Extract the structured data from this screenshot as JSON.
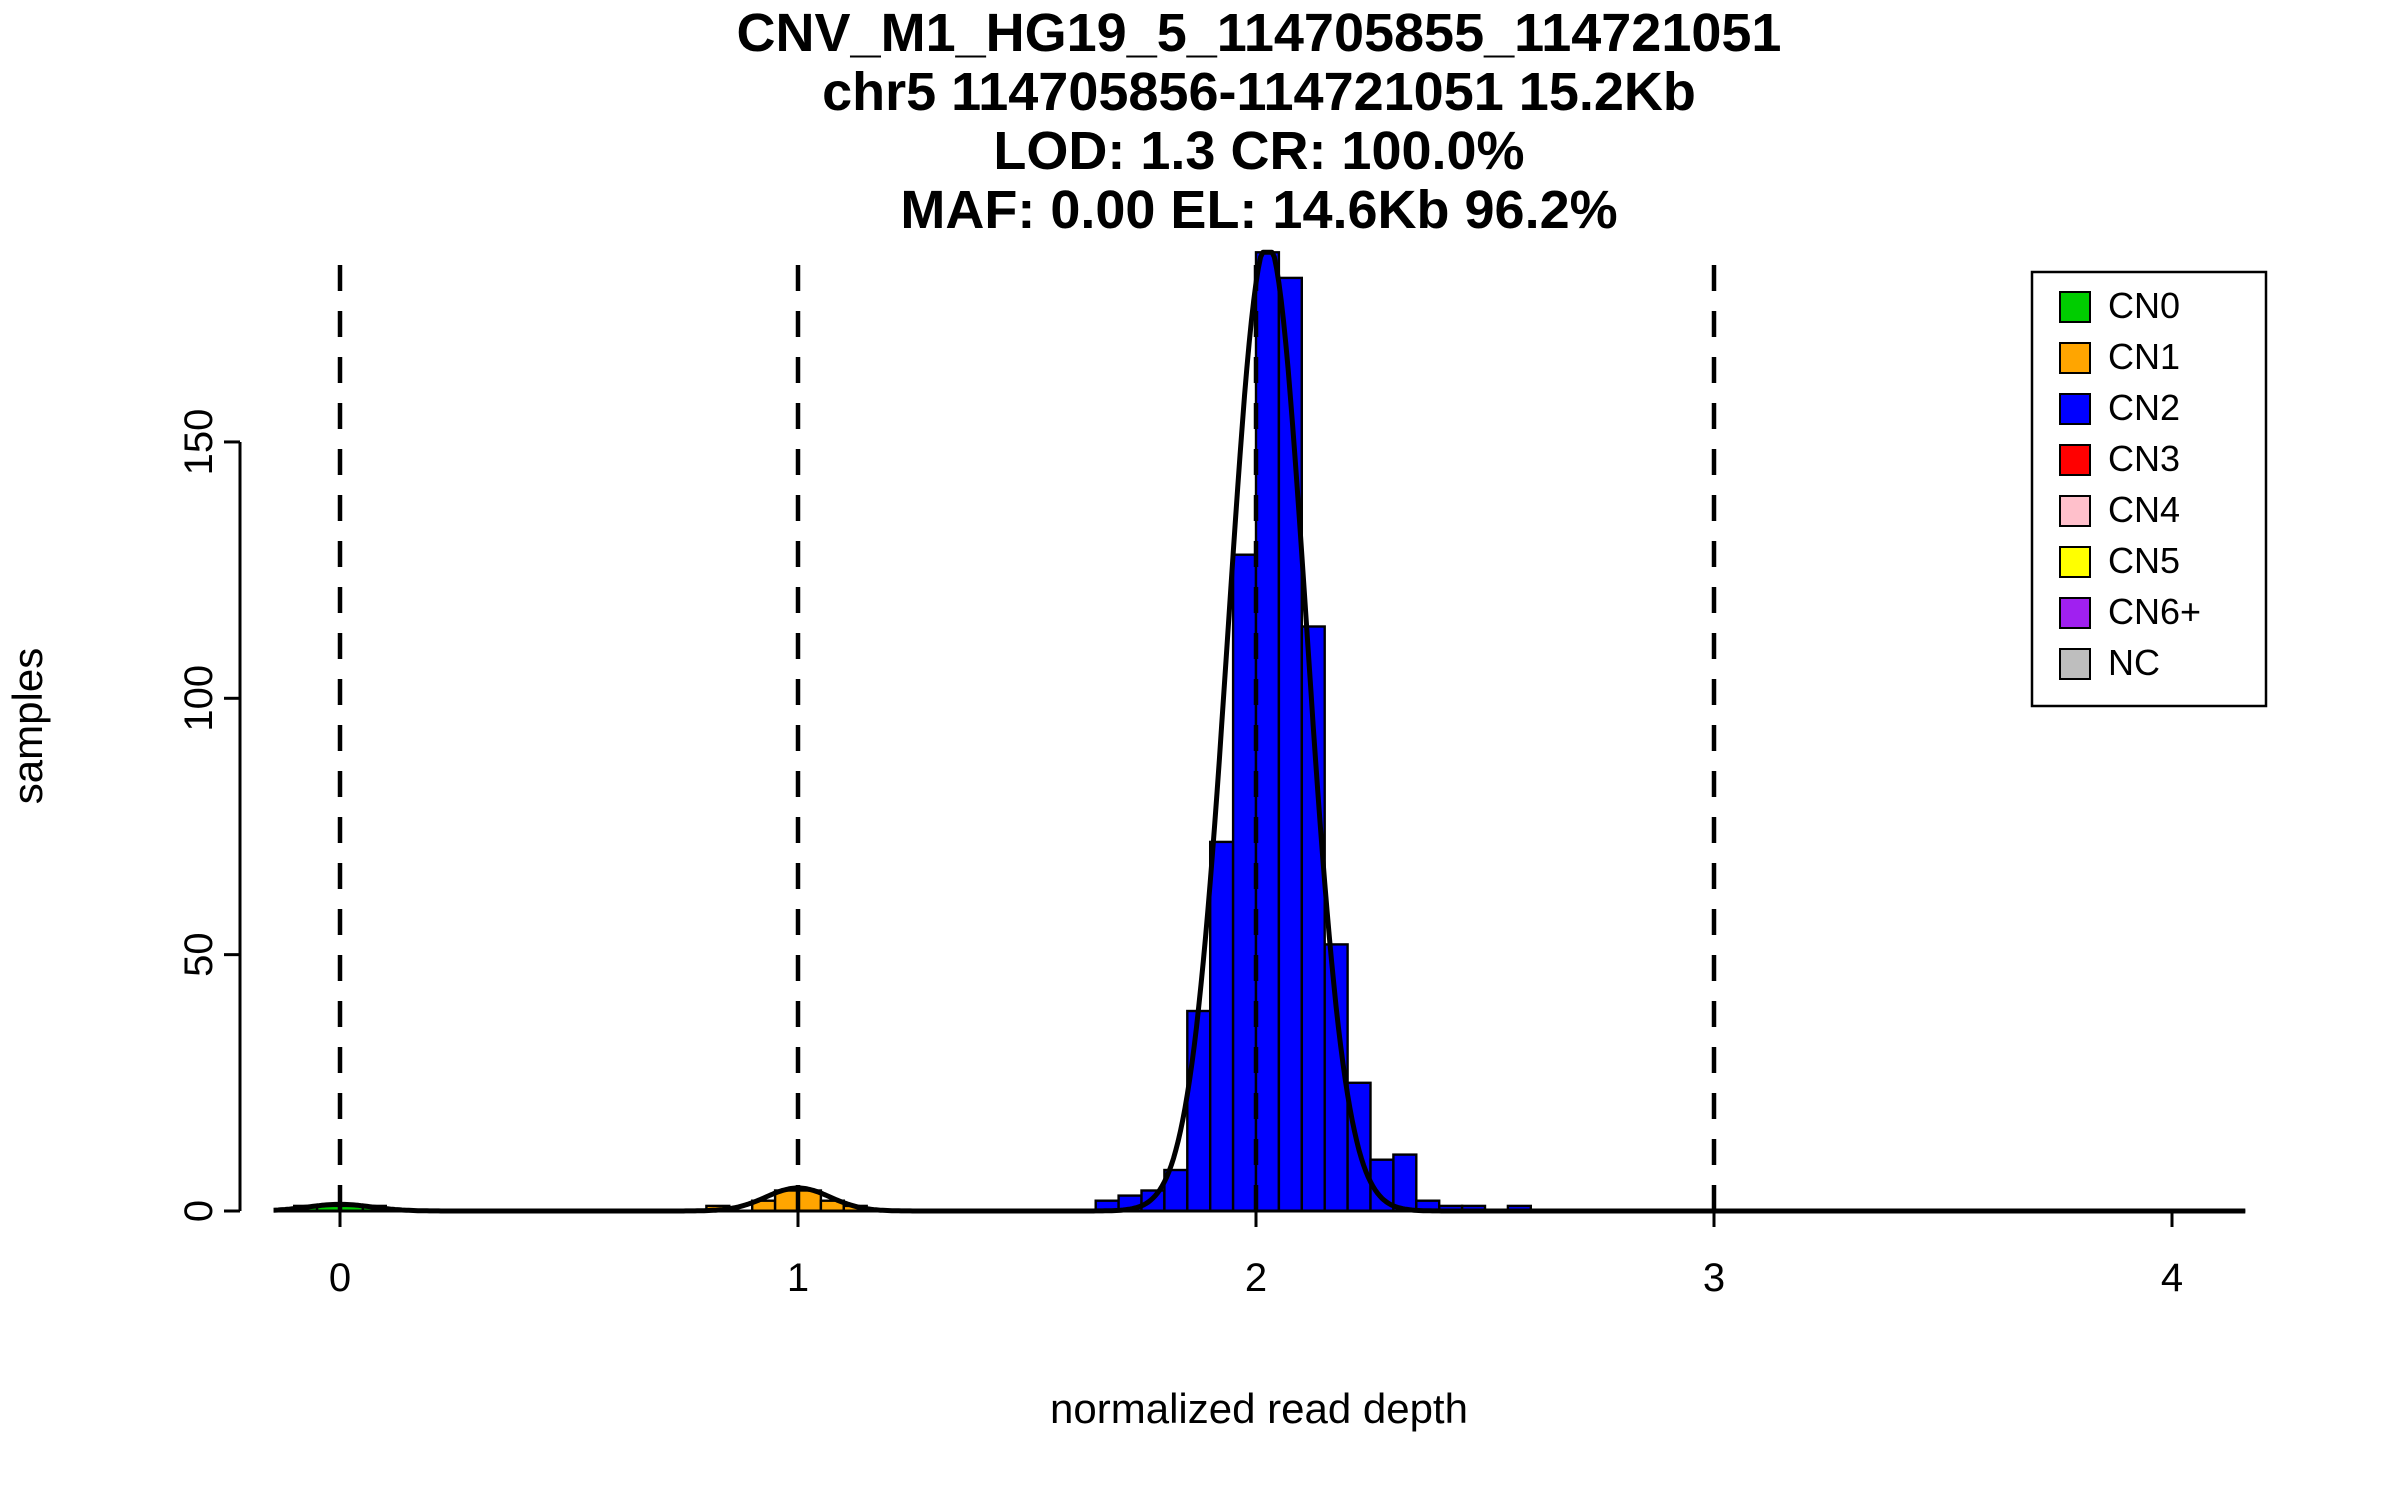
{
  "figure": {
    "title_lines": [
      "CNV_M1_HG19_5_114705855_114721051",
      "chr5 114705856-114721051 15.2Kb",
      "LOD: 1.3 CR: 100.0%",
      "MAF: 0.00 EL: 14.6Kb 96.2%"
    ],
    "xlabel": "normalized read depth",
    "ylabel": "samples"
  },
  "legend": {
    "items": [
      {
        "label": "CN0",
        "color": "#00CD00"
      },
      {
        "label": "CN1",
        "color": "#FFA500"
      },
      {
        "label": "CN2",
        "color": "#0000FF"
      },
      {
        "label": "CN3",
        "color": "#FF0000"
      },
      {
        "label": "CN4",
        "color": "#FFC0CB"
      },
      {
        "label": "CN5",
        "color": "#FFFF00"
      },
      {
        "label": "CN6+",
        "color": "#A020F0"
      },
      {
        "label": "NC",
        "color": "#BEBEBE"
      }
    ]
  },
  "chart_data": {
    "type": "bar",
    "subtype": "histogram",
    "title": "CNV_M1_HG19_5_114705855_114721051",
    "subtitle_lines": [
      "chr5 114705856-114721051 15.2Kb",
      "LOD: 1.3 CR: 100.0%",
      "MAF: 0.00 EL: 14.6Kb 96.2%"
    ],
    "xlabel": "normalized read depth",
    "ylabel": "samples",
    "xlim": [
      -0.145,
      4.16
    ],
    "ylim": [
      0,
      187
    ],
    "x_ticks": [
      0,
      1,
      2,
      3,
      4
    ],
    "y_ticks": [
      0,
      50,
      100,
      150
    ],
    "grid": false,
    "legend_position": "top-right",
    "dashed_guides_x": [
      0,
      1,
      2,
      3
    ],
    "bin_width": 0.05,
    "bins_format": "[bin_start, samples]",
    "series": [
      {
        "name": "CN0",
        "color": "#00CD00",
        "bins": [
          [
            -0.1,
            1
          ],
          [
            -0.05,
            1
          ],
          [
            0.0,
            1
          ],
          [
            0.05,
            1
          ]
        ]
      },
      {
        "name": "CN1",
        "color": "#FFA500",
        "bins": [
          [
            0.8,
            1
          ],
          [
            0.9,
            2
          ],
          [
            0.95,
            4
          ],
          [
            1.0,
            4
          ],
          [
            1.05,
            2
          ],
          [
            1.1,
            1
          ]
        ]
      },
      {
        "name": "CN2",
        "color": "#0000FF",
        "bins": [
          [
            1.65,
            2
          ],
          [
            1.7,
            3
          ],
          [
            1.75,
            4
          ],
          [
            1.8,
            8
          ],
          [
            1.85,
            39
          ],
          [
            1.9,
            72
          ],
          [
            1.95,
            128
          ],
          [
            2.0,
            187
          ],
          [
            2.05,
            182
          ],
          [
            2.1,
            114
          ],
          [
            2.15,
            52
          ],
          [
            2.2,
            25
          ],
          [
            2.25,
            10
          ],
          [
            2.3,
            11
          ],
          [
            2.35,
            2
          ],
          [
            2.4,
            1
          ],
          [
            2.45,
            1
          ],
          [
            2.55,
            1
          ]
        ]
      }
    ],
    "fit_curve": {
      "color": "#000000",
      "components": [
        {
          "mu": 0.0,
          "sigma": 0.07,
          "amp": 1.3
        },
        {
          "mu": 1.0,
          "sigma": 0.07,
          "amp": 4.5
        },
        {
          "mu": 2.025,
          "sigma": 0.085,
          "amp": 189
        }
      ]
    }
  }
}
